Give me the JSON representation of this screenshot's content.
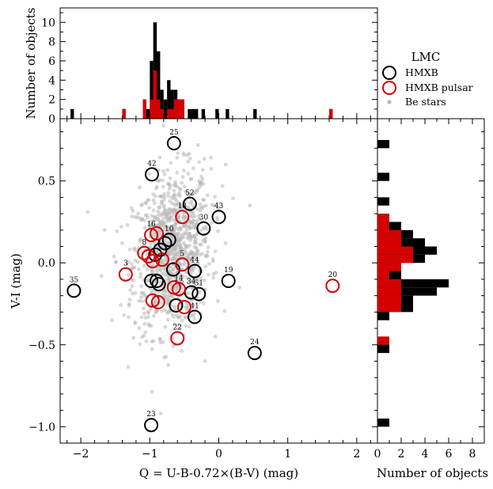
{
  "chart_data": [
    {
      "type": "scatter",
      "xlabel": "Q = U-B-0.72×(B-V) (mag)",
      "ylabel": "V-I (mag)",
      "xlim": [
        -2.3,
        2.3
      ],
      "ylim": [
        -1.1,
        0.88
      ],
      "x_ticks": [
        -2,
        -1,
        0,
        1,
        2
      ],
      "y_ticks": [
        -1.0,
        -0.5,
        0.0,
        0.5
      ],
      "x_tick_labels": [
        "−2",
        "−1",
        "0",
        "1",
        "2"
      ],
      "y_tick_labels": [
        "−1.0",
        "−0.5",
        "0.0",
        "0.5"
      ],
      "grid": false,
      "legend_title": "LMC",
      "legend_position": "top-right",
      "series": [
        {
          "name": "HMXB",
          "color": "#000000",
          "marker": "open-circle",
          "points": [
            {
              "label": "35",
              "x": -2.1,
              "y": -0.17
            },
            {
              "label": "42",
              "x": -0.97,
              "y": 0.54
            },
            {
              "label": "25",
              "x": -0.65,
              "y": 0.73
            },
            {
              "label": "52",
              "x": -0.42,
              "y": 0.36
            },
            {
              "label": "30",
              "x": -0.22,
              "y": 0.21
            },
            {
              "label": "43",
              "x": 0.0,
              "y": 0.28
            },
            {
              "label": "10",
              "x": -0.72,
              "y": 0.14
            },
            {
              "label": "",
              "x": -0.78,
              "y": 0.12
            },
            {
              "label": "",
              "x": -0.85,
              "y": 0.08
            },
            {
              "label": "",
              "x": -0.92,
              "y": 0.05
            },
            {
              "label": "",
              "x": -0.66,
              "y": -0.04
            },
            {
              "label": "44",
              "x": -0.35,
              "y": -0.05
            },
            {
              "label": "",
              "x": -0.98,
              "y": -0.11
            },
            {
              "label": "",
              "x": -0.9,
              "y": -0.11
            },
            {
              "label": "",
              "x": -0.87,
              "y": -0.13
            },
            {
              "label": "34",
              "x": -0.4,
              "y": -0.18
            },
            {
              "label": "51",
              "x": -0.29,
              "y": -0.19
            },
            {
              "label": "19",
              "x": 0.14,
              "y": -0.11
            },
            {
              "label": "",
              "x": -0.62,
              "y": -0.26
            },
            {
              "label": "41",
              "x": -0.35,
              "y": -0.33
            },
            {
              "label": "24",
              "x": 0.52,
              "y": -0.55
            },
            {
              "label": "23",
              "x": -0.98,
              "y": -0.99
            }
          ]
        },
        {
          "name": "HMXB pulsar",
          "color": "#d40000",
          "marker": "open-circle",
          "points": [
            {
              "label": "3",
              "x": -1.35,
              "y": -0.07
            },
            {
              "label": "16",
              "x": -0.98,
              "y": 0.17
            },
            {
              "label": "",
              "x": -0.9,
              "y": 0.18
            },
            {
              "label": "8",
              "x": -1.08,
              "y": 0.06
            },
            {
              "label": "",
              "x": -1.02,
              "y": 0.04
            },
            {
              "label": "",
              "x": -0.96,
              "y": 0.01
            },
            {
              "label": "",
              "x": -0.82,
              "y": 0.02
            },
            {
              "label": "5",
              "x": -0.53,
              "y": -0.01
            },
            {
              "label": "18",
              "x": -0.53,
              "y": 0.28
            },
            {
              "label": "",
              "x": -0.65,
              "y": -0.15
            },
            {
              "label": "14",
              "x": -0.58,
              "y": -0.16
            },
            {
              "label": "",
              "x": -0.96,
              "y": -0.23
            },
            {
              "label": "",
              "x": -0.88,
              "y": -0.24
            },
            {
              "label": "",
              "x": -0.5,
              "y": -0.27
            },
            {
              "label": "20",
              "x": 1.65,
              "y": -0.14
            },
            {
              "label": "22",
              "x": -0.6,
              "y": -0.46
            }
          ]
        },
        {
          "name": "Be stars",
          "color": "#b8b8b8",
          "marker": "filled-dot",
          "points": []
        }
      ]
    },
    {
      "type": "bar",
      "orientation": "vertical",
      "ylabel": "Number of objects",
      "ylim": [
        0,
        11.5
      ],
      "y_ticks": [
        0,
        2,
        4,
        6,
        8,
        10
      ],
      "y_tick_labels": [
        "0",
        "2",
        "4",
        "6",
        "8",
        "10"
      ],
      "bin_width": 0.05,
      "bins": [
        {
          "x": -2.125,
          "total": 1,
          "pulsar": 0
        },
        {
          "x": -1.375,
          "total": 1,
          "pulsar": 1
        },
        {
          "x": -1.075,
          "total": 2,
          "pulsar": 2
        },
        {
          "x": -1.025,
          "total": 1,
          "pulsar": 0
        },
        {
          "x": -0.975,
          "total": 6,
          "pulsar": 2
        },
        {
          "x": -0.925,
          "total": 10,
          "pulsar": 5
        },
        {
          "x": -0.875,
          "total": 7,
          "pulsar": 2
        },
        {
          "x": -0.825,
          "total": 3,
          "pulsar": 1
        },
        {
          "x": -0.775,
          "total": 2,
          "pulsar": 0
        },
        {
          "x": -0.725,
          "total": 4,
          "pulsar": 1
        },
        {
          "x": -0.675,
          "total": 3,
          "pulsar": 1
        },
        {
          "x": -0.625,
          "total": 3,
          "pulsar": 2
        },
        {
          "x": -0.575,
          "total": 2,
          "pulsar": 2
        },
        {
          "x": -0.525,
          "total": 2,
          "pulsar": 2
        },
        {
          "x": -0.425,
          "total": 1,
          "pulsar": 0
        },
        {
          "x": -0.375,
          "total": 1,
          "pulsar": 0
        },
        {
          "x": -0.325,
          "total": 1,
          "pulsar": 0
        },
        {
          "x": -0.225,
          "total": 1,
          "pulsar": 0
        },
        {
          "x": -0.025,
          "total": 1,
          "pulsar": 0
        },
        {
          "x": 0.125,
          "total": 1,
          "pulsar": 0
        },
        {
          "x": 0.525,
          "total": 1,
          "pulsar": 0
        },
        {
          "x": 1.625,
          "total": 1,
          "pulsar": 1
        }
      ]
    },
    {
      "type": "bar",
      "orientation": "horizontal",
      "xlabel": "Number of objects",
      "xlim": [
        0,
        9
      ],
      "x_ticks": [
        0,
        2,
        4,
        6,
        8
      ],
      "x_tick_labels": [
        "0",
        "2",
        "4",
        "6",
        "8"
      ],
      "bin_height": 0.05,
      "bins": [
        {
          "y": 0.725,
          "total": 1,
          "pulsar": 0
        },
        {
          "y": 0.525,
          "total": 1,
          "pulsar": 0
        },
        {
          "y": 0.375,
          "total": 1,
          "pulsar": 0
        },
        {
          "y": 0.275,
          "total": 1,
          "pulsar": 1
        },
        {
          "y": 0.225,
          "total": 2,
          "pulsar": 1
        },
        {
          "y": 0.175,
          "total": 3,
          "pulsar": 2
        },
        {
          "y": 0.125,
          "total": 4,
          "pulsar": 2
        },
        {
          "y": 0.075,
          "total": 5,
          "pulsar": 3
        },
        {
          "y": 0.025,
          "total": 4,
          "pulsar": 3
        },
        {
          "y": -0.025,
          "total": 2,
          "pulsar": 2
        },
        {
          "y": -0.075,
          "total": 2,
          "pulsar": 1
        },
        {
          "y": -0.125,
          "total": 6,
          "pulsar": 2
        },
        {
          "y": -0.175,
          "total": 5,
          "pulsar": 2
        },
        {
          "y": -0.225,
          "total": 3,
          "pulsar": 2
        },
        {
          "y": -0.275,
          "total": 3,
          "pulsar": 2
        },
        {
          "y": -0.325,
          "total": 1,
          "pulsar": 0
        },
        {
          "y": -0.475,
          "total": 1,
          "pulsar": 1
        },
        {
          "y": -0.525,
          "total": 1,
          "pulsar": 0
        },
        {
          "y": -0.975,
          "total": 1,
          "pulsar": 0
        }
      ]
    }
  ]
}
